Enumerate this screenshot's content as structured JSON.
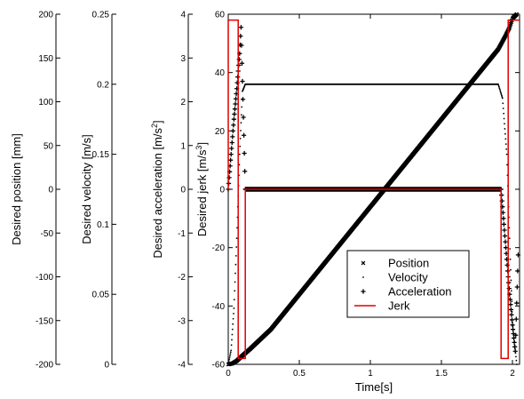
{
  "chart_data": {
    "type": "line",
    "xlabel": "Time[s]",
    "xlim": [
      0,
      2.05
    ],
    "x_ticks": [
      "0",
      "0.5",
      "1",
      "1.5",
      "2"
    ],
    "axes": [
      {
        "ylabel": "Desired position [mm]",
        "ylim": [
          -200,
          200
        ],
        "ticks": [
          "200",
          "150",
          "100",
          "50",
          "0",
          "-50",
          "-100",
          "-150",
          "-200"
        ]
      },
      {
        "ylabel_main": "Desired velocity [m/s]",
        "ylim": [
          0,
          0.25
        ],
        "ticks": [
          "0.25",
          "0.2",
          "0.15",
          "0.1",
          "0.05",
          "0"
        ]
      },
      {
        "ylabel_main": "Desired acceleration [m/s",
        "ylabel_sup": "2",
        "ylabel_end": "]",
        "ylim": [
          -4,
          4
        ],
        "ticks": [
          "4",
          "3",
          "2",
          "1",
          "0",
          "-1",
          "-2",
          "-3",
          "-4"
        ]
      },
      {
        "ylabel_main": "Desired jerk [m/s",
        "ylabel_sup": "3",
        "ylabel_end": "]",
        "ylim": [
          -60,
          60
        ],
        "ticks": [
          "60",
          "40",
          "20",
          "0",
          "-20",
          "-40",
          "-60"
        ]
      }
    ],
    "legend": {
      "placement": "lower-right",
      "entries": [
        "Position",
        "Velocity",
        "Acceleration",
        "Jerk"
      ]
    },
    "series": [
      {
        "name": "Position",
        "unit_axis": "Desired position [mm]",
        "marker": "x",
        "x": [
          0,
          0.03,
          0.06,
          0.1,
          0.15,
          0.3,
          0.5,
          0.75,
          1.0,
          1.25,
          1.5,
          1.75,
          1.9,
          1.95,
          1.98,
          2.0,
          2.03
        ],
        "y": [
          -200,
          -199,
          -196,
          -190,
          -183,
          -160,
          -120,
          -70,
          -20,
          30,
          80,
          130,
          160,
          175,
          185,
          195,
          200
        ]
      },
      {
        "name": "Velocity",
        "unit_axis": "Desired velocity [m/s]",
        "marker": ".",
        "x": [
          0,
          0.02,
          0.04,
          0.06,
          0.08,
          0.1,
          0.12,
          1.9,
          1.93,
          1.96,
          1.98,
          2.0,
          2.03
        ],
        "y": [
          0,
          0.01,
          0.04,
          0.09,
          0.15,
          0.195,
          0.2,
          0.2,
          0.19,
          0.15,
          0.09,
          0.03,
          0
        ]
      },
      {
        "name": "Acceleration",
        "unit_axis": "Desired acceleration [m/s2]",
        "marker": "+",
        "x": [
          0,
          0.02,
          0.04,
          0.06,
          0.08,
          0.09,
          0.12,
          1.92,
          1.94,
          1.96,
          1.98,
          2.0,
          2.02,
          2.04
        ],
        "y": [
          0,
          0.8,
          1.6,
          2.3,
          3.1,
          3.7,
          0,
          0,
          -0.8,
          -1.6,
          -2.4,
          -3.1,
          -3.7,
          -1.5
        ]
      },
      {
        "name": "Jerk",
        "unit_axis": "Desired jerk [m/s3]",
        "marker": "line",
        "x": [
          0,
          0,
          0.07,
          0.07,
          0.12,
          0.12,
          1.92,
          1.92,
          1.97,
          1.97,
          2.05
        ],
        "y": [
          0,
          58,
          58,
          -58,
          -58,
          0,
          0,
          -58,
          -58,
          58,
          58
        ]
      }
    ]
  },
  "colors": {
    "jerk": "#e00000",
    "markers": "#000000"
  }
}
